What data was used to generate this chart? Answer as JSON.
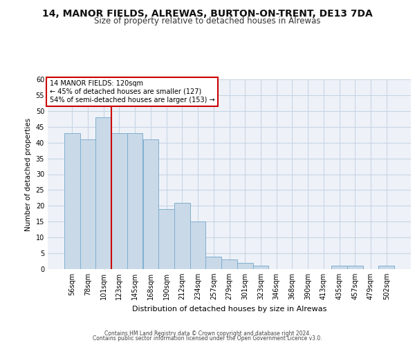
{
  "title_line1": "14, MANOR FIELDS, ALREWAS, BURTON-ON-TRENT, DE13 7DA",
  "title_line2": "Size of property relative to detached houses in Alrewas",
  "xlabel": "Distribution of detached houses by size in Alrewas",
  "ylabel": "Number of detached properties",
  "categories": [
    "56sqm",
    "78sqm",
    "101sqm",
    "123sqm",
    "145sqm",
    "168sqm",
    "190sqm",
    "212sqm",
    "234sqm",
    "257sqm",
    "279sqm",
    "301sqm",
    "323sqm",
    "346sqm",
    "368sqm",
    "390sqm",
    "413sqm",
    "435sqm",
    "457sqm",
    "479sqm",
    "502sqm"
  ],
  "values": [
    43,
    41,
    48,
    43,
    43,
    41,
    19,
    21,
    15,
    4,
    3,
    2,
    1,
    0,
    0,
    0,
    0,
    1,
    1,
    0,
    1
  ],
  "bar_color": "#c9d9e8",
  "bar_edge_color": "#7fafd0",
  "vline_x": 2.5,
  "vline_color": "#cc0000",
  "annotation_text": "14 MANOR FIELDS: 120sqm\n← 45% of detached houses are smaller (127)\n54% of semi-detached houses are larger (153) →",
  "annotation_box_edge": "#cc0000",
  "ylim": [
    0,
    60
  ],
  "yticks": [
    0,
    5,
    10,
    15,
    20,
    25,
    30,
    35,
    40,
    45,
    50,
    55,
    60
  ],
  "grid_color": "#c8d4e4",
  "background_color": "#eef2f8",
  "footer_line1": "Contains HM Land Registry data © Crown copyright and database right 2024.",
  "footer_line2": "Contains public sector information licensed under the Open Government Licence v3.0."
}
